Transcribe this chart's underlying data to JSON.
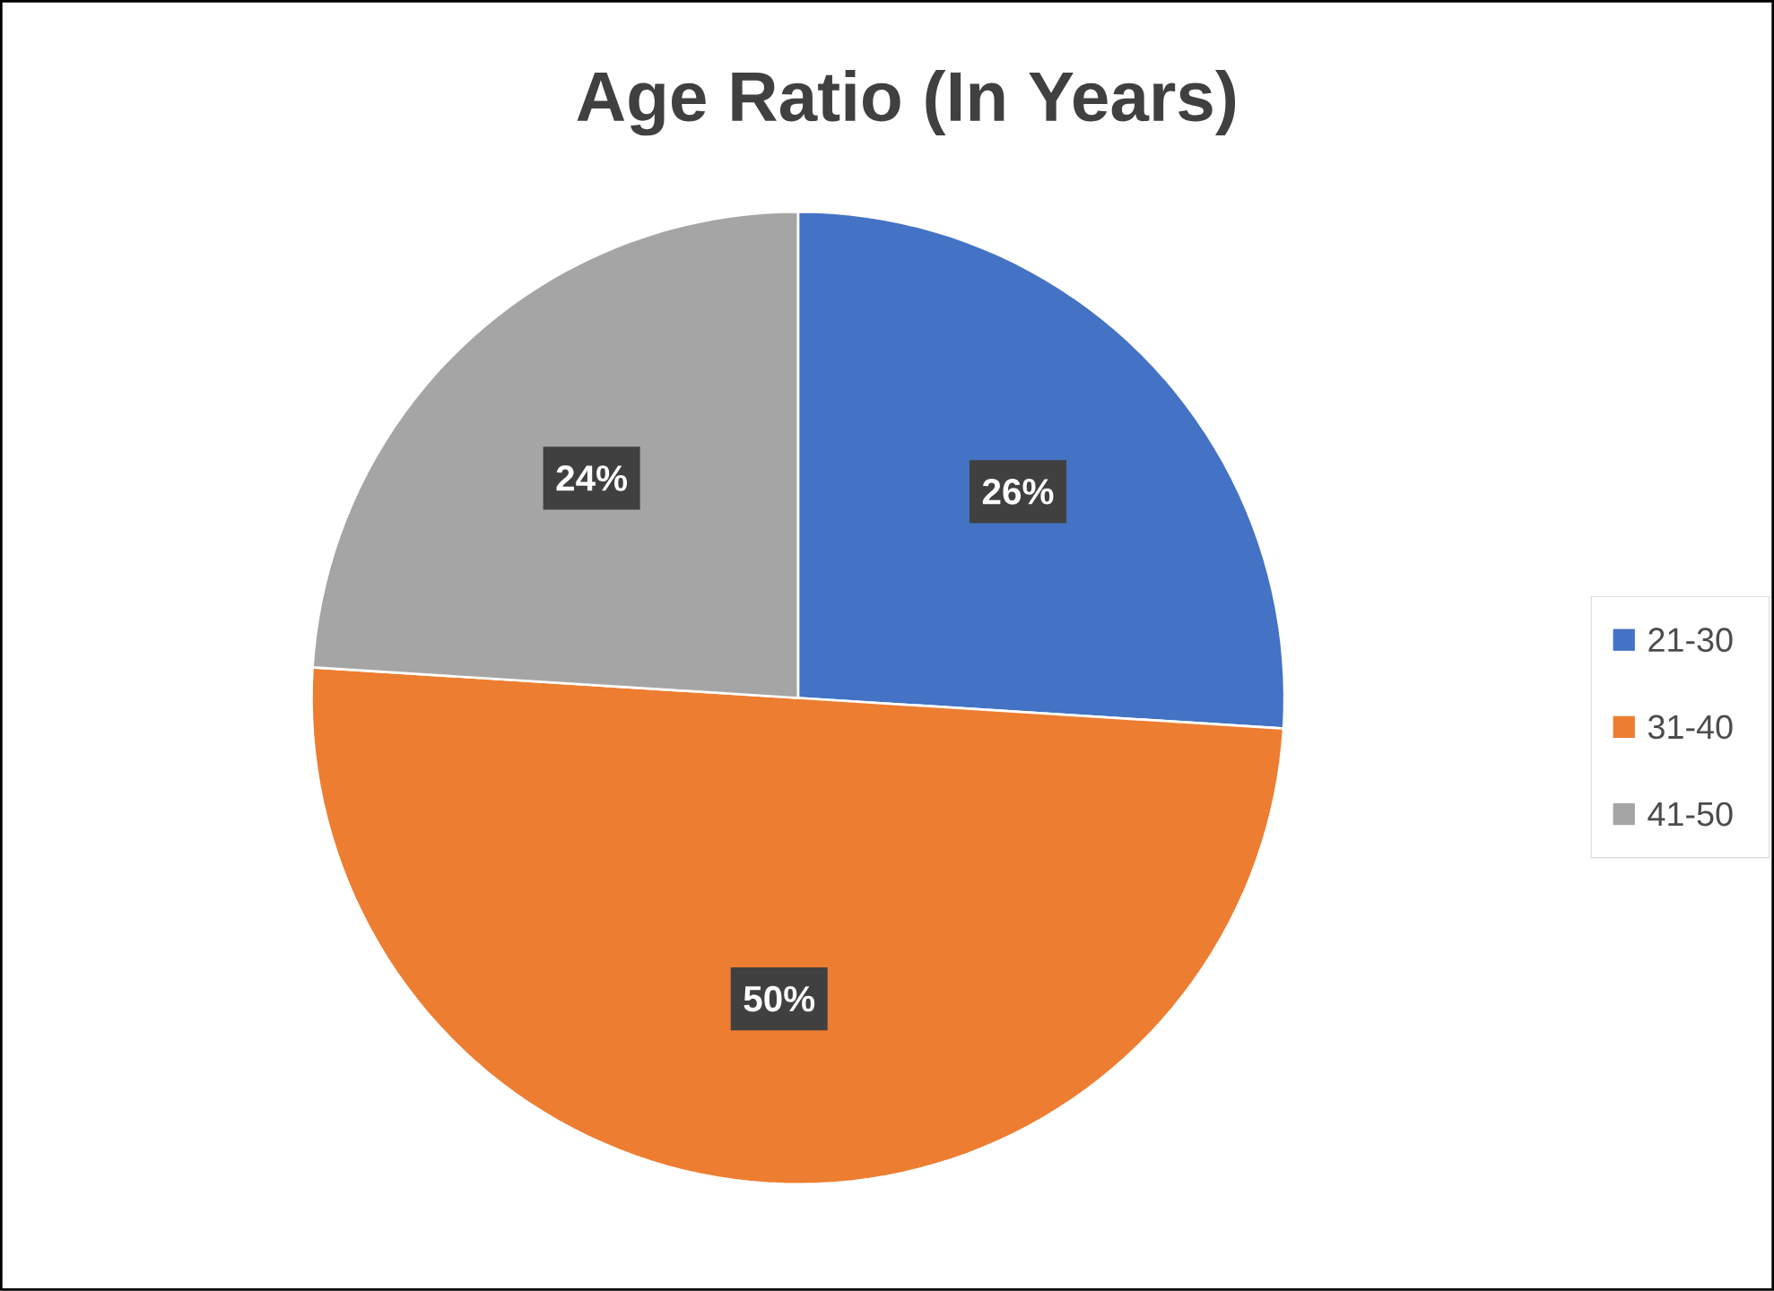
{
  "chart_data": {
    "type": "pie",
    "title": "Age Ratio (In Years)",
    "categories": [
      "21-30",
      "31-40",
      "41-50"
    ],
    "values": [
      26,
      50,
      24
    ],
    "colors": [
      "#4472c4",
      "#ed7d31",
      "#a5a5a5"
    ],
    "value_labels": [
      "26%",
      "50%",
      "24%"
    ],
    "legend": "right"
  }
}
